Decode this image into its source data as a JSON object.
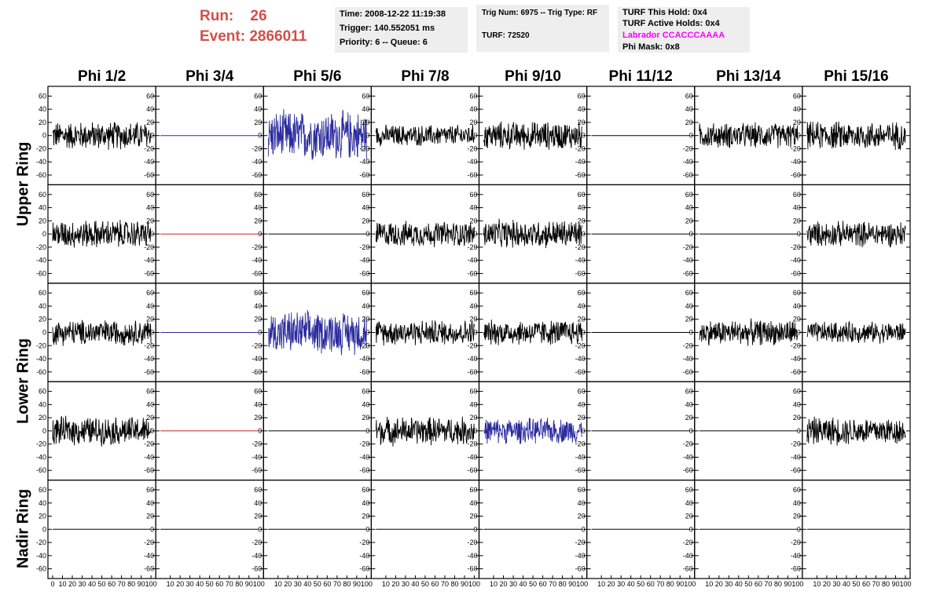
{
  "header": {
    "run_label": "Run:    26",
    "event_label": "Event: 2866011"
  },
  "info_box_1": {
    "time": "Time: 2008-12-22 11:19:38",
    "trigger": "Trigger: 140.552051 ms",
    "priority": "Priority: 6 -- Queue: 6"
  },
  "info_box_2": {
    "trig": "Trig Num: 6975 -- Trig Type: RF",
    "turf": "TURF: 72520"
  },
  "info_box_3": {
    "hold": "TURF This Hold: 0x4",
    "active": "TURF Active Holds: 0x4",
    "labrador": "Labrador CCACCCAAAA",
    "mask": "Phi Mask: 0x8"
  },
  "colors": {
    "header_red": "#d0504a",
    "labrador_magenta": "#ff00ff",
    "trace_black": "#000000",
    "trace_blue": "#2b2b9e",
    "trace_red": "#cc2222",
    "info_bg": "#eeeeee"
  },
  "columns": [
    "Phi 1/2",
    "Phi 3/4",
    "Phi 5/6",
    "Phi 7/8",
    "Phi 9/10",
    "Phi 11/12",
    "Phi 13/14",
    "Phi 15/16"
  ],
  "rows": [
    "Upper Ring",
    "Lower Ring",
    "Nadir Ring"
  ],
  "chart_data": {
    "type": "line",
    "description_free": true,
    "xlim": [
      0,
      100
    ],
    "ylim": [
      -70,
      70
    ],
    "y_ticks": [
      -60,
      -40,
      -20,
      0,
      20,
      40,
      60
    ],
    "x_tick_labels": [
      "0",
      "10",
      "20",
      "30",
      "40",
      "50",
      "60",
      "70",
      "80",
      "90",
      "100"
    ],
    "panels": [
      [
        "noise20",
        "flat-blue",
        "noise35-blue",
        "noise15",
        "noise20",
        "flat",
        "noise18",
        "noise20"
      ],
      [
        "noise20",
        "flat-red",
        "flat",
        "noise18",
        "noise20",
        "flat",
        "flat",
        "noise18"
      ],
      [
        "noise18",
        "flat-blue",
        "noise30-blue",
        "noise18",
        "noise18",
        "flat",
        "noise18",
        "noise15"
      ],
      [
        "noise20",
        "flat-red",
        "flat",
        "noise20",
        "noise18-blue",
        "flat",
        "flat",
        "noise20"
      ],
      [
        "flat",
        "flat",
        "flat",
        "flat",
        "flat",
        "flat",
        "flat",
        "flat"
      ]
    ]
  }
}
